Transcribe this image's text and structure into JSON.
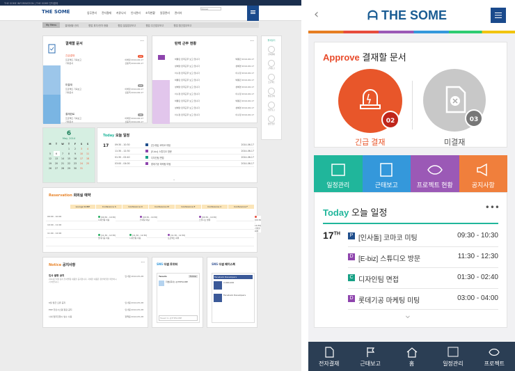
{
  "desktop": {
    "topbar_text": "THE SOME INFORMATION   |   THE SOME 전자결재",
    "logo": "THE SOME",
    "search_placeholder": "Intranet",
    "nav": [
      "업무관리",
      "전자결재",
      "커뮤니티",
      "인사관리",
      "조직현황",
      "일정관리",
      "관리자"
    ],
    "tabs": [
      "My Menu",
      "결재현황 관리",
      "협업 휴가/반차 현황",
      "협업 일일업무보고",
      "협업 주간업무보고",
      "협업 월간업무보고"
    ],
    "approval": {
      "title": "결재할 문서",
      "groups": [
        {
          "label": "긴급결재",
          "count": "02",
          "rows": [
            [
              "프로젝트 기획보고",
              "이해정",
              "2014-06-17"
            ],
            [
              "기타문서",
              "신동혁",
              "2014-06-17"
            ]
          ]
        },
        {
          "label": "미결재",
          "count": "03",
          "rows": [
            [
              "프로젝트 기획보고",
              "이해정",
              "2014-06-17"
            ],
            [
              "기타문서",
              "신동혁",
              "2014-06-17"
            ]
          ]
        },
        {
          "label": "결재완료",
          "count": "45",
          "rows": [
            [
              "프로젝트 기획보고",
              "이해정",
              "2014-06-17"
            ],
            [
              "기타문서",
              "신동혁",
              "2014-06-17"
            ]
          ]
        }
      ]
    },
    "flex": {
      "title": "탄력 근무 현황",
      "rows": [
        [
          "박통민 탄력근무 보고 입니다",
          "박통민",
          "2014-06-17"
        ],
        [
          "성혜영 탄력근무 보고 입니다",
          "성혜영",
          "2014-06-17"
        ],
        [
          "이수정 탄력근무 보고 입니다",
          "이수정",
          "2014-06-17"
        ],
        [
          "박통민 탄력근무 보고 입니다",
          "박통민",
          "2014-06-17"
        ],
        [
          "성혜영 탄력근무 보고 입니다",
          "성혜영",
          "2014-06-17"
        ],
        [
          "이수정 탄력근무 보고 입니다",
          "이수정",
          "2014-06-17"
        ],
        [
          "박통민 탄력근무 보고 입니다",
          "박통민",
          "2014-06-17"
        ],
        [
          "성혜영 탄력근무 보고 입니다",
          "성혜영",
          "2014-06-17"
        ],
        [
          "이수정 탄력근무 보고 입니다",
          "이수정",
          "2014-06-17"
        ]
      ]
    },
    "quick": {
      "title": "즐겨찾기",
      "items": [
        "전자결재",
        "근태보고",
        "프로젝트",
        "일정 관리",
        "업무보고",
        "협업 업무"
      ]
    },
    "calendar": {
      "day": "6",
      "month": "May, 2014",
      "weekdays": [
        "M",
        "T",
        "W",
        "T",
        "F",
        "S",
        "S"
      ],
      "weeks": [
        [
          "",
          "",
          "",
          "1",
          "2",
          "3",
          "4"
        ],
        [
          "5",
          "6",
          "7",
          "8",
          "9",
          "10",
          "11"
        ],
        [
          "12",
          "13",
          "14",
          "15",
          "16",
          "17",
          "18"
        ],
        [
          "19",
          "20",
          "21",
          "22",
          "23",
          "24",
          "25"
        ],
        [
          "26",
          "27",
          "28",
          "29",
          "30",
          "31",
          ""
        ]
      ]
    },
    "today": {
      "title_en": "Today",
      "title_ko": "오늘 일정",
      "date": "17",
      "rows": [
        [
          "09:30 - 10:30",
          "[인사팀] 코마코 미팅",
          "2014-06-17",
          "#1f4e8c"
        ],
        [
          "11:30 - 12:30",
          "[E-biz] 스튜디오 방문",
          "2014-06-17",
          "#8e44ad"
        ],
        [
          "01:30 - 02:40",
          "디자인팀 면접",
          "2014-06-17",
          "#16a085"
        ],
        [
          "03:00 - 04:00",
          "롯데기공 마케팅 미팅",
          "2014-06-17",
          "#8e44ad"
        ]
      ]
    },
    "reservation": {
      "title_en": "Reservation",
      "title_ko": "회의실 예약",
      "rooms": [
        "Lounge SOME",
        "Conference S",
        "Conference O",
        "Conference M",
        "Conference E",
        "Conference C",
        "Conference F"
      ],
      "times": [
        "09:00 - 10:00",
        "10:00 - 11:00",
        "11:00 - 12:00"
      ],
      "events": [
        {
          "time": "[09:30 - 10:30]",
          "label": "디자인팀 미팅",
          "color": "#27ae60"
        },
        {
          "time": "[09:30 - 10:30]",
          "label": "인사팀 미팅",
          "color": "#8e44ad"
        },
        {
          "time": "[09:30 - 10:30]",
          "label": "스튜디오 방문",
          "color": "#8e44ad"
        },
        {
          "time": "[09:30 - 10:30]",
          "label": "기획실 회의",
          "color": "#e74c3c"
        },
        {
          "time": "[11:30 - 12:30]",
          "label": "롯데기공 미팅",
          "color": "#27ae60"
        },
        {
          "time": "[11:30 - 12:30]",
          "label": "디자인팀 미팅",
          "color": "#27ae60"
        },
        {
          "time": "[11:30 - 12:30]",
          "label": "프로젝트 회의",
          "color": "#8e44ad"
        }
      ]
    },
    "notice": {
      "title_en": "Notice",
      "title_ko": "공지사항",
      "headline": "인사 발령 공지",
      "headline_author": "인사팀",
      "headline_date": "2014-05-28",
      "body": "2014년 6월 정기 인사발령 내용을 공지합니다. 자세한 내용은 첨부파일을 확인하시기 바랍니다.",
      "rows": [
        [
          "6월 월급 오류 공지",
          "인사팀",
          "2014-05-28"
        ],
        [
          "ERP 전산시스템 점검 공지",
          "인사팀",
          "2014-05-28"
        ],
        [
          "사내 업무진행시 필수 사용",
          "정책팀",
          "2014-05-28"
        ]
      ]
    },
    "twitter": {
      "title_en": "SNS",
      "title_ko": "더썸 트위터",
      "tweets": "Tweets",
      "follow": "Follow",
      "handle": "더썸(회사) @THESOME",
      "placeholder": "Tweet to @THESOME"
    },
    "facebook": {
      "title_en": "SNS",
      "title_ko": "더썸 페이스북",
      "page": "Facebook Developers",
      "likes": "2,990,000"
    }
  },
  "mobile": {
    "logo": "THE SOME",
    "approve": {
      "title_en": "Approve",
      "title_ko": "결재할 문서",
      "urgent_label": "긴급 결재",
      "urgent_count": "02",
      "pending_label": "미결재",
      "pending_count": "03"
    },
    "tiles": [
      {
        "label": "일정관리",
        "color": "#20b69b",
        "icon": "calendar-icon"
      },
      {
        "label": "근태보고",
        "color": "#3498db",
        "icon": "report-icon"
      },
      {
        "label": "프로젝트 현황",
        "color": "#9b59b6",
        "icon": "eye-icon"
      },
      {
        "label": "공지사항",
        "color": "#f07f3c",
        "icon": "megaphone-icon"
      }
    ],
    "today": {
      "title_en": "Today",
      "title_ko": "오늘 일정",
      "day": "17",
      "suffix": "TH",
      "events": [
        {
          "icon": "P",
          "label": "[인사돌] 코마코 미팅",
          "time": "09:30 - 10:30",
          "color": "#1f4e8c"
        },
        {
          "icon": "D",
          "label": "[E-biz] 스튜디오 방문",
          "time": "11:30 - 12:30",
          "color": "#8e44ad"
        },
        {
          "icon": "C",
          "label": "디자인팀 면접",
          "time": "01:30 - 02:40",
          "color": "#16a085"
        },
        {
          "icon": "D",
          "label": "롯데기공 마케팅 미팅",
          "time": "03:00 - 04:00",
          "color": "#8e44ad"
        }
      ]
    },
    "bottom_nav": [
      {
        "label": "전자결재",
        "icon": "document-icon"
      },
      {
        "label": "근태보고",
        "icon": "flag-icon"
      },
      {
        "label": "홈",
        "icon": "home-icon"
      },
      {
        "label": "일정관리",
        "icon": "calendar-icon"
      },
      {
        "label": "프로젝트",
        "icon": "eye-icon"
      }
    ]
  }
}
